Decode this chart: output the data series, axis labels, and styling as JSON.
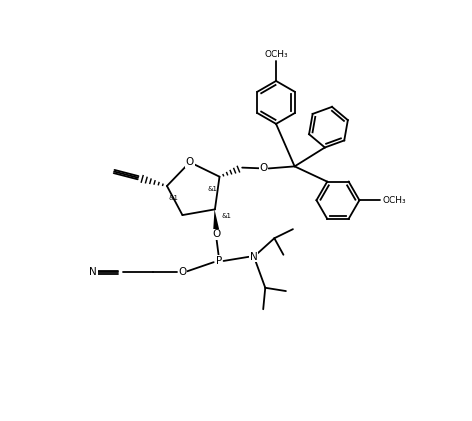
{
  "bg_color": "#ffffff",
  "lc": "#000000",
  "lw": 1.3,
  "fs": 6.5,
  "figsize": [
    4.72,
    4.21
  ],
  "dpi": 100,
  "xlim": [
    0,
    10
  ],
  "ylim": [
    0,
    10
  ]
}
